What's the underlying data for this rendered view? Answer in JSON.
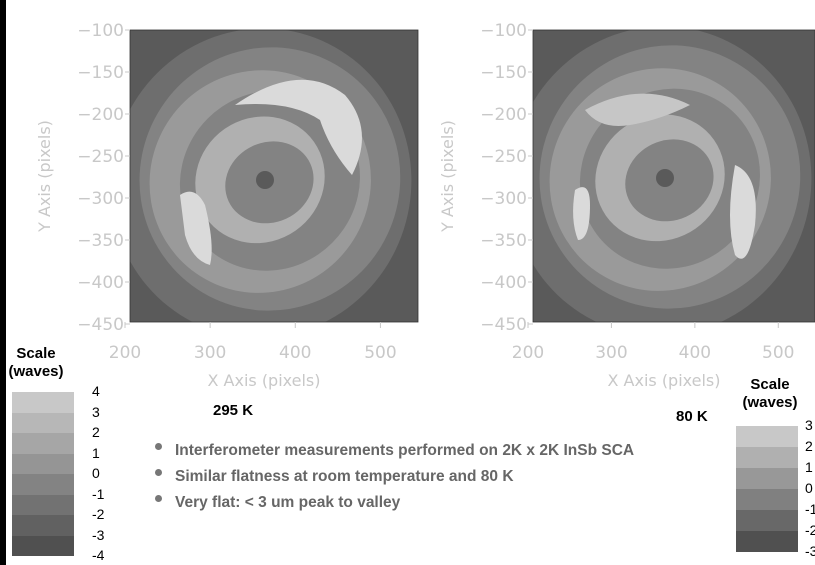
{
  "chart_data": [
    {
      "type": "heatmap",
      "title": "295 K",
      "xlabel": "X Axis (pixels)",
      "ylabel": "Y Axis (pixels)",
      "xlim": [
        200,
        550
      ],
      "ylim": [
        -450,
        -100
      ],
      "xticks": [
        200,
        300,
        400,
        500
      ],
      "yticks": [
        -100,
        -150,
        -200,
        -250,
        -300,
        -350,
        -400,
        -450
      ],
      "scale_title": "Scale (waves)",
      "scale_levels": [
        4,
        3,
        2,
        1,
        0,
        -1,
        -2,
        -3,
        -4
      ]
    },
    {
      "type": "heatmap",
      "title": "80 K",
      "xlabel": "X Axis (pixels)",
      "ylabel": "Y Axis (pixels)",
      "xlim": [
        200,
        550
      ],
      "ylim": [
        -450,
        -100
      ],
      "xticks": [
        200,
        300,
        400,
        500
      ],
      "yticks": [
        -100,
        -150,
        -200,
        -250,
        -300,
        -350,
        -400,
        -450
      ],
      "scale_title": "Scale (waves)",
      "scale_levels": [
        3,
        2,
        1,
        0,
        -1,
        -2,
        -3
      ]
    }
  ],
  "bullets": [
    "Interferometer measurements performed on 2K x 2K InSb SCA",
    "Similar flatness at room temperature and 80 K",
    "Very flat:   < 3 um peak to valley"
  ],
  "colors": {
    "band_light": "#dcdcdc",
    "band_dark": "#555555",
    "tick_text": "#c8c8c8",
    "bullet_text": "#666666"
  }
}
